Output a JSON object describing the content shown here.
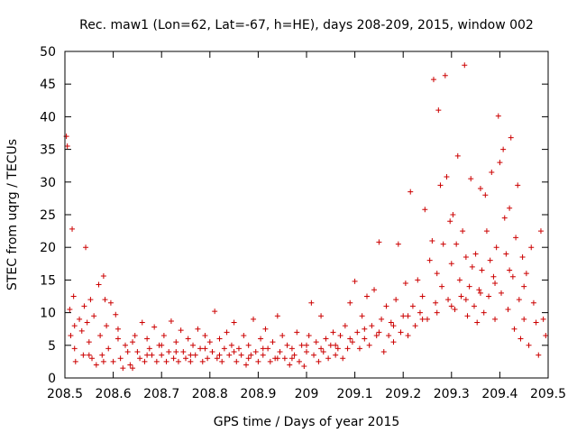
{
  "chart_data": {
    "type": "scatter",
    "title": "Rec. maw1 (Lon=62, Lat=-67, h=HE), days 208-209, 2015, window 002",
    "xlabel": "GPS time / Days of year 2015",
    "ylabel": "STEC from uqrg / TECUs",
    "xlim": [
      208.5,
      209.5
    ],
    "ylim": [
      0,
      50
    ],
    "x_ticks": [
      208.5,
      208.6,
      208.7,
      208.8,
      208.9,
      209.0,
      209.1,
      209.2,
      209.3,
      209.4,
      209.5
    ],
    "x_tick_labels": [
      "208.5",
      "208.6",
      "208.7",
      "208.8",
      "208.9",
      "209",
      "209.1",
      "209.2",
      "209.3",
      "209.4",
      "209.5"
    ],
    "y_ticks": [
      0,
      5,
      10,
      15,
      20,
      25,
      30,
      35,
      40,
      45,
      50
    ],
    "y_tick_labels": [
      "0",
      "5",
      "10",
      "15",
      "20",
      "25",
      "30",
      "35",
      "40",
      "45",
      "50"
    ],
    "grid": false,
    "marker": "+",
    "color": "#cc0000",
    "series": [
      {
        "name": "STEC",
        "points": [
          [
            208.503,
            37.0
          ],
          [
            208.505,
            35.5
          ],
          [
            208.51,
            10.5
          ],
          [
            208.512,
            6.5
          ],
          [
            208.515,
            22.8
          ],
          [
            208.518,
            12.5
          ],
          [
            208.52,
            8.0
          ],
          [
            208.522,
            2.5
          ],
          [
            208.53,
            9.0
          ],
          [
            208.535,
            7.2
          ],
          [
            208.538,
            3.5
          ],
          [
            208.54,
            11.0
          ],
          [
            208.543,
            20.0
          ],
          [
            208.546,
            8.5
          ],
          [
            208.55,
            5.5
          ],
          [
            208.553,
            12.0
          ],
          [
            208.556,
            3.0
          ],
          [
            208.56,
            9.5
          ],
          [
            208.565,
            2.0
          ],
          [
            208.57,
            14.3
          ],
          [
            208.573,
            6.5
          ],
          [
            208.577,
            3.5
          ],
          [
            208.58,
            15.6
          ],
          [
            208.583,
            12.0
          ],
          [
            208.586,
            8.0
          ],
          [
            208.59,
            4.5
          ],
          [
            208.595,
            11.5
          ],
          [
            208.6,
            2.5
          ],
          [
            208.605,
            9.7
          ],
          [
            208.61,
            6.0
          ],
          [
            208.615,
            3.0
          ],
          [
            208.62,
            1.5
          ],
          [
            208.625,
            5.0
          ],
          [
            208.63,
            4.0
          ],
          [
            208.635,
            2.0
          ],
          [
            208.64,
            1.5
          ],
          [
            208.645,
            6.5
          ],
          [
            208.65,
            4.0
          ],
          [
            208.655,
            3.0
          ],
          [
            208.66,
            8.5
          ],
          [
            208.665,
            2.5
          ],
          [
            208.67,
            6.0
          ],
          [
            208.675,
            4.5
          ],
          [
            208.68,
            3.5
          ],
          [
            208.685,
            7.8
          ],
          [
            208.69,
            2.5
          ],
          [
            208.695,
            5.0
          ],
          [
            208.7,
            3.5
          ],
          [
            208.705,
            6.5
          ],
          [
            208.71,
            2.5
          ],
          [
            208.715,
            4.0
          ],
          [
            208.72,
            8.7
          ],
          [
            208.725,
            3.0
          ],
          [
            208.73,
            5.5
          ],
          [
            208.735,
            2.5
          ],
          [
            208.74,
            7.3
          ],
          [
            208.745,
            4.0
          ],
          [
            208.75,
            3.0
          ],
          [
            208.755,
            6.0
          ],
          [
            208.76,
            2.5
          ],
          [
            208.765,
            5.0
          ],
          [
            208.77,
            3.5
          ],
          [
            208.775,
            7.5
          ],
          [
            208.78,
            4.5
          ],
          [
            208.785,
            2.5
          ],
          [
            208.79,
            6.5
          ],
          [
            208.795,
            3.0
          ],
          [
            208.8,
            5.5
          ],
          [
            208.805,
            4.0
          ],
          [
            208.81,
            10.2
          ],
          [
            208.815,
            3.0
          ],
          [
            208.82,
            6.0
          ],
          [
            208.825,
            2.5
          ],
          [
            208.83,
            4.5
          ],
          [
            208.835,
            7.0
          ],
          [
            208.84,
            3.5
          ],
          [
            208.845,
            5.0
          ],
          [
            208.85,
            8.5
          ],
          [
            208.855,
            2.5
          ],
          [
            208.86,
            4.5
          ],
          [
            208.865,
            3.5
          ],
          [
            208.87,
            6.5
          ],
          [
            208.875,
            2.0
          ],
          [
            208.88,
            5.0
          ],
          [
            208.885,
            3.5
          ],
          [
            208.89,
            9.0
          ],
          [
            208.895,
            4.0
          ],
          [
            208.9,
            2.5
          ],
          [
            208.905,
            6.0
          ],
          [
            208.91,
            3.5
          ],
          [
            208.915,
            7.5
          ],
          [
            208.92,
            4.5
          ],
          [
            208.925,
            2.5
          ],
          [
            208.93,
            5.5
          ],
          [
            208.935,
            3.0
          ],
          [
            208.94,
            9.5
          ],
          [
            208.945,
            4.0
          ],
          [
            208.95,
            6.5
          ],
          [
            208.955,
            3.0
          ],
          [
            208.96,
            5.0
          ],
          [
            208.965,
            2.0
          ],
          [
            208.97,
            4.5
          ],
          [
            208.975,
            3.5
          ],
          [
            208.98,
            7.0
          ],
          [
            208.985,
            2.5
          ],
          [
            208.99,
            5.0
          ],
          [
            208.995,
            1.8
          ],
          [
            209.0,
            4.0
          ],
          [
            209.005,
            6.5
          ],
          [
            209.01,
            11.5
          ],
          [
            209.015,
            3.5
          ],
          [
            209.02,
            5.5
          ],
          [
            209.025,
            2.5
          ],
          [
            209.03,
            9.5
          ],
          [
            209.035,
            4.0
          ],
          [
            209.04,
            6.0
          ],
          [
            209.045,
            3.0
          ],
          [
            209.05,
            5.0
          ],
          [
            209.055,
            7.0
          ],
          [
            209.06,
            3.5
          ],
          [
            209.065,
            4.5
          ],
          [
            209.07,
            6.5
          ],
          [
            209.075,
            3.0
          ],
          [
            209.08,
            8.0
          ],
          [
            209.085,
            4.5
          ],
          [
            209.09,
            11.5
          ],
          [
            209.095,
            5.5
          ],
          [
            209.1,
            14.8
          ],
          [
            209.105,
            7.0
          ],
          [
            209.11,
            4.5
          ],
          [
            209.115,
            9.5
          ],
          [
            209.12,
            6.0
          ],
          [
            209.125,
            12.5
          ],
          [
            209.13,
            5.0
          ],
          [
            209.135,
            8.0
          ],
          [
            209.14,
            13.5
          ],
          [
            209.145,
            6.5
          ],
          [
            209.15,
            20.8
          ],
          [
            209.155,
            9.0
          ],
          [
            209.16,
            4.0
          ],
          [
            209.165,
            11.0
          ],
          [
            209.17,
            6.5
          ],
          [
            209.175,
            8.5
          ],
          [
            209.18,
            5.5
          ],
          [
            209.185,
            12.0
          ],
          [
            209.19,
            20.5
          ],
          [
            209.195,
            7.0
          ],
          [
            209.2,
            9.5
          ],
          [
            209.205,
            14.5
          ],
          [
            209.21,
            6.5
          ],
          [
            209.215,
            28.5
          ],
          [
            209.22,
            11.0
          ],
          [
            209.225,
            8.0
          ],
          [
            209.23,
            15.0
          ],
          [
            209.235,
            10.0
          ],
          [
            209.24,
            12.5
          ],
          [
            209.245,
            25.8
          ],
          [
            209.25,
            9.0
          ],
          [
            209.255,
            18.0
          ],
          [
            209.26,
            21.0
          ],
          [
            209.263,
            45.7
          ],
          [
            209.267,
            11.5
          ],
          [
            209.27,
            16.0
          ],
          [
            209.273,
            41.0
          ],
          [
            209.277,
            29.5
          ],
          [
            209.28,
            14.0
          ],
          [
            209.283,
            20.5
          ],
          [
            209.287,
            46.3
          ],
          [
            209.29,
            30.8
          ],
          [
            209.293,
            12.0
          ],
          [
            209.297,
            24.0
          ],
          [
            209.3,
            17.5
          ],
          [
            209.303,
            25.0
          ],
          [
            209.307,
            10.5
          ],
          [
            209.31,
            20.5
          ],
          [
            209.313,
            34.0
          ],
          [
            209.317,
            15.0
          ],
          [
            209.32,
            12.5
          ],
          [
            209.323,
            22.5
          ],
          [
            209.327,
            47.9
          ],
          [
            209.33,
            18.5
          ],
          [
            209.333,
            9.5
          ],
          [
            209.337,
            14.0
          ],
          [
            209.34,
            30.5
          ],
          [
            209.343,
            17.0
          ],
          [
            209.347,
            11.0
          ],
          [
            209.35,
            19.0
          ],
          [
            209.353,
            8.5
          ],
          [
            209.357,
            13.5
          ],
          [
            209.36,
            29.0
          ],
          [
            209.363,
            16.5
          ],
          [
            209.367,
            10.0
          ],
          [
            209.37,
            28.0
          ],
          [
            209.373,
            22.5
          ],
          [
            209.377,
            12.5
          ],
          [
            209.38,
            18.0
          ],
          [
            209.383,
            31.5
          ],
          [
            209.387,
            15.5
          ],
          [
            209.39,
            9.0
          ],
          [
            209.393,
            20.0
          ],
          [
            209.397,
            40.1
          ],
          [
            209.4,
            33.0
          ],
          [
            209.403,
            13.0
          ],
          [
            209.407,
            35.0
          ],
          [
            209.41,
            24.5
          ],
          [
            209.413,
            19.0
          ],
          [
            209.417,
            10.5
          ],
          [
            209.42,
            26.0
          ],
          [
            209.423,
            36.8
          ],
          [
            209.427,
            15.5
          ],
          [
            209.43,
            7.5
          ],
          [
            209.433,
            21.5
          ],
          [
            209.437,
            29.5
          ],
          [
            209.44,
            12.0
          ],
          [
            209.443,
            6.0
          ],
          [
            209.447,
            18.5
          ],
          [
            209.45,
            9.0
          ],
          [
            209.455,
            16.0
          ],
          [
            209.46,
            5.0
          ],
          [
            209.465,
            20.0
          ],
          [
            209.47,
            11.5
          ],
          [
            209.475,
            8.5
          ],
          [
            209.48,
            3.5
          ],
          [
            209.485,
            22.5
          ],
          [
            209.49,
            9.0
          ],
          [
            209.495,
            6.5
          ],
          [
            208.52,
            4.5
          ],
          [
            208.55,
            3.5
          ],
          [
            208.58,
            2.5
          ],
          [
            208.61,
            7.5
          ],
          [
            208.64,
            5.5
          ],
          [
            208.67,
            3.5
          ],
          [
            208.7,
            5.0
          ],
          [
            208.73,
            4.0
          ],
          [
            208.76,
            3.5
          ],
          [
            208.79,
            4.5
          ],
          [
            208.82,
            3.5
          ],
          [
            208.85,
            4.0
          ],
          [
            208.88,
            3.0
          ],
          [
            208.91,
            4.5
          ],
          [
            208.94,
            3.0
          ],
          [
            208.97,
            3.0
          ],
          [
            209.0,
            5.0
          ],
          [
            209.03,
            4.5
          ],
          [
            209.06,
            5.0
          ],
          [
            209.09,
            6.0
          ],
          [
            209.12,
            7.5
          ],
          [
            209.15,
            7.0
          ],
          [
            209.18,
            8.0
          ],
          [
            209.21,
            9.5
          ],
          [
            209.24,
            9.0
          ],
          [
            209.27,
            10.0
          ],
          [
            209.3,
            11.0
          ],
          [
            209.33,
            12.0
          ],
          [
            209.36,
            13.0
          ],
          [
            209.39,
            14.5
          ],
          [
            209.42,
            16.5
          ],
          [
            209.45,
            14.0
          ]
        ]
      }
    ]
  }
}
